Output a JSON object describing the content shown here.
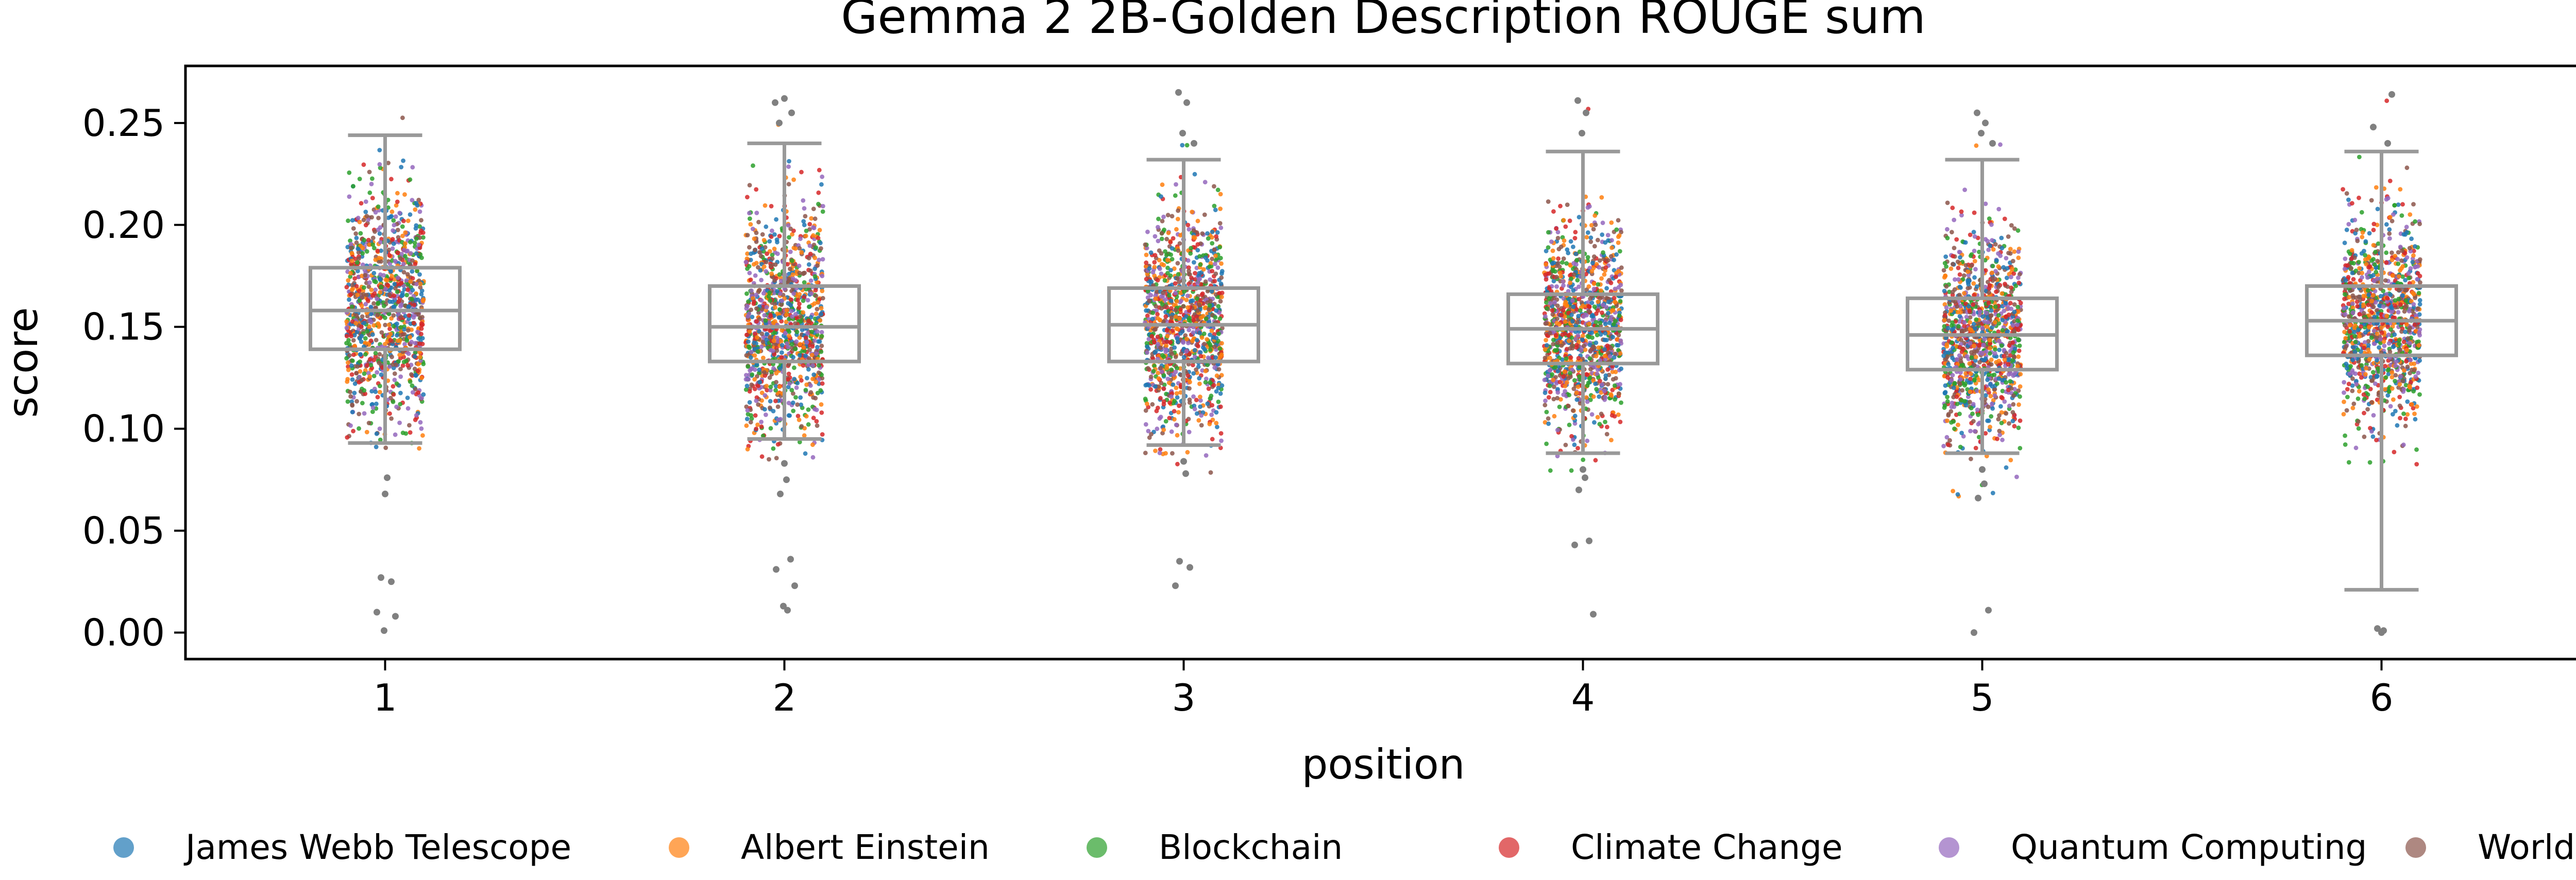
{
  "chart_data": {
    "type": "box",
    "title": "Gemma 2 2B-Golden Description ROUGE sum",
    "xlabel": "position",
    "ylabel": "score",
    "ylim": [
      -0.013,
      0.278
    ],
    "yticks": [
      "0.00",
      "0.05",
      "0.10",
      "0.15",
      "0.20",
      "0.25"
    ],
    "categories": [
      "1",
      "2",
      "3",
      "4",
      "5",
      "6"
    ],
    "boxes": [
      {
        "position": "1",
        "whisker_low": 0.093,
        "q1": 0.139,
        "median": 0.158,
        "q3": 0.179,
        "whisker_high": 0.244,
        "point_spread": [
          0.09,
          0.255
        ],
        "outliers": [
          0.068,
          0.076,
          0.027,
          0.025,
          0.01,
          0.008,
          0.001
        ]
      },
      {
        "position": "2",
        "whisker_low": 0.095,
        "q1": 0.133,
        "median": 0.15,
        "q3": 0.17,
        "whisker_high": 0.24,
        "point_spread": [
          0.085,
          0.262
        ],
        "outliers": [
          0.083,
          0.075,
          0.068,
          0.036,
          0.031,
          0.023,
          0.013,
          0.011,
          0.25,
          0.255,
          0.26,
          0.262
        ]
      },
      {
        "position": "3",
        "whisker_low": 0.092,
        "q1": 0.133,
        "median": 0.151,
        "q3": 0.169,
        "whisker_high": 0.232,
        "point_spread": [
          0.078,
          0.265
        ],
        "outliers": [
          0.084,
          0.078,
          0.035,
          0.032,
          0.023,
          0.24,
          0.245,
          0.26,
          0.265
        ]
      },
      {
        "position": "4",
        "whisker_low": 0.088,
        "q1": 0.132,
        "median": 0.149,
        "q3": 0.166,
        "whisker_high": 0.236,
        "point_spread": [
          0.07,
          0.261
        ],
        "outliers": [
          0.08,
          0.076,
          0.07,
          0.045,
          0.043,
          0.009,
          0.245,
          0.255,
          0.261
        ]
      },
      {
        "position": "5",
        "whisker_low": 0.088,
        "q1": 0.129,
        "median": 0.146,
        "q3": 0.164,
        "whisker_high": 0.232,
        "point_spread": [
          0.066,
          0.255
        ],
        "outliers": [
          0.08,
          0.073,
          0.066,
          0.011,
          0.0,
          0.24,
          0.245,
          0.25,
          0.255
        ]
      },
      {
        "position": "6",
        "whisker_low": 0.021,
        "q1": 0.136,
        "median": 0.153,
        "q3": 0.17,
        "whisker_high": 0.236,
        "point_spread": [
          0.06,
          0.264
        ],
        "outliers": [
          0.0,
          0.001,
          0.002,
          0.24,
          0.248,
          0.264
        ]
      }
    ],
    "series": [
      {
        "name": "James Webb Telescope",
        "color": "#1f77b4"
      },
      {
        "name": "Albert Einstein",
        "color": "#ff7f0e"
      },
      {
        "name": "Blockchain",
        "color": "#2ca02c"
      },
      {
        "name": "Climate Change",
        "color": "#d62728"
      },
      {
        "name": "Quantum Computing",
        "color": "#9467bd"
      },
      {
        "name": "World War II",
        "color": "#8c564b"
      }
    ],
    "box_color": "#999999",
    "outlier_color": "#808080",
    "grid": false,
    "legend_position": "bottom"
  }
}
